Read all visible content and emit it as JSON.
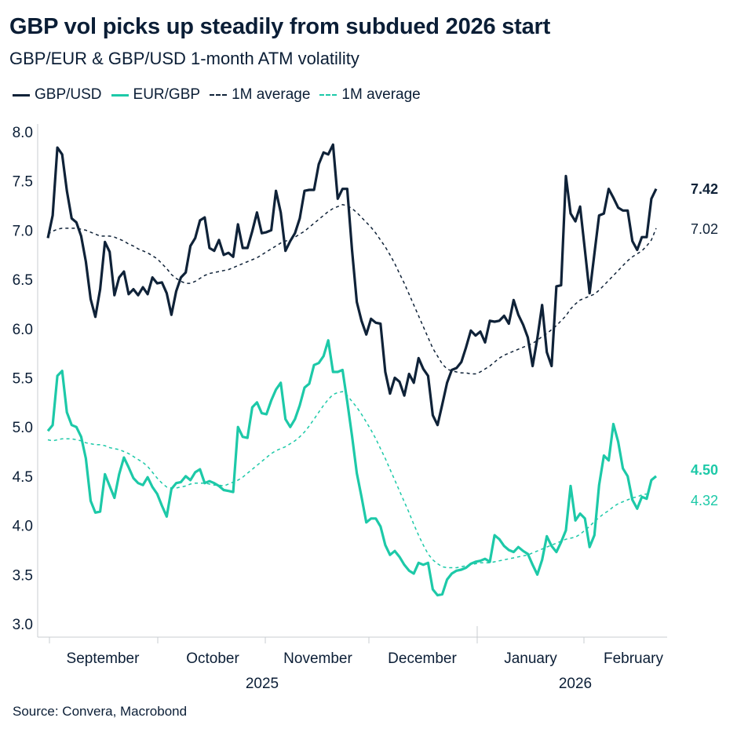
{
  "header": {
    "title": "GBP vol picks up steadily from subdued 2026 start",
    "subtitle": "GBP/EUR & GBP/USD 1-month ATM volatility"
  },
  "legend": [
    {
      "label": "GBP/USD",
      "style": "solid",
      "color": "#0f2238"
    },
    {
      "label": "EUR/GBP",
      "style": "solid",
      "color": "#1dc9a8"
    },
    {
      "label": "1M average",
      "style": "dashed",
      "color": "#0f2238"
    },
    {
      "label": "1M average",
      "style": "dashed",
      "color": "#1dc9a8"
    }
  ],
  "footer": {
    "source": "Source: Convera, Macrobond"
  },
  "chart_data": {
    "type": "line",
    "ylim": [
      3.0,
      8.0
    ],
    "yticks": [
      "8.0",
      "7.5",
      "7.0",
      "6.5",
      "6.0",
      "5.5",
      "5.0",
      "4.5",
      "4.0",
      "3.5",
      "3.0"
    ],
    "grid": false,
    "legend_position": "top-left",
    "x_month_labels": [
      "September",
      "October",
      "November",
      "December",
      "January",
      "February"
    ],
    "x_year_labels": [
      "2025",
      "2026"
    ],
    "x_start_index": 0,
    "x_end_index": 134,
    "series": [
      {
        "name": "GBP/USD",
        "color": "#0f2238",
        "style": "solid",
        "end_label": "7.42",
        "values": [
          6.92,
          7.15,
          7.84,
          7.77,
          7.4,
          7.12,
          7.08,
          6.94,
          6.68,
          6.3,
          6.12,
          6.4,
          6.88,
          6.78,
          6.34,
          6.52,
          6.58,
          6.35,
          6.4,
          6.34,
          6.42,
          6.35,
          6.52,
          6.46,
          6.47,
          6.36,
          6.14,
          6.38,
          6.52,
          6.57,
          6.84,
          6.92,
          7.1,
          7.13,
          6.82,
          6.79,
          6.9,
          6.75,
          6.77,
          6.73,
          7.06,
          6.82,
          6.82,
          6.99,
          7.18,
          6.97,
          6.98,
          7.0,
          7.4,
          7.18,
          6.79,
          6.89,
          6.97,
          7.12,
          7.4,
          7.41,
          7.41,
          7.67,
          7.79,
          7.77,
          7.87,
          7.32,
          7.42,
          7.42,
          6.8,
          6.27,
          6.08,
          5.94,
          6.1,
          6.06,
          6.05,
          5.56,
          5.34,
          5.5,
          5.46,
          5.32,
          5.54,
          5.45,
          5.7,
          5.59,
          5.52,
          5.12,
          5.02,
          5.23,
          5.45,
          5.58,
          5.6,
          5.66,
          5.81,
          5.98,
          5.93,
          5.97,
          5.86,
          6.08,
          6.07,
          6.08,
          6.13,
          6.05,
          6.29,
          6.14,
          6.04,
          5.91,
          5.62,
          5.9,
          6.24,
          5.76,
          5.62,
          6.43,
          6.44,
          7.55,
          7.17,
          7.09,
          7.24,
          6.8,
          6.36,
          6.76,
          7.15,
          7.17,
          7.42,
          7.33,
          7.23,
          7.2,
          7.2,
          6.89,
          6.8,
          6.93,
          6.93,
          7.32,
          7.42
        ],
        "average": [
          6.96,
          6.99,
          7.01,
          7.02,
          7.02,
          7.02,
          7.02,
          7.01,
          7.0,
          6.98,
          6.96,
          6.94,
          6.94,
          6.94,
          6.93,
          6.91,
          6.89,
          6.86,
          6.84,
          6.81,
          6.79,
          6.77,
          6.74,
          6.71,
          6.66,
          6.61,
          6.55,
          6.51,
          6.48,
          6.46,
          6.46,
          6.48,
          6.51,
          6.54,
          6.56,
          6.57,
          6.58,
          6.59,
          6.6,
          6.62,
          6.64,
          6.66,
          6.68,
          6.7,
          6.72,
          6.75,
          6.78,
          6.81,
          6.84,
          6.87,
          6.89,
          6.9,
          6.93,
          6.96,
          6.99,
          7.03,
          7.07,
          7.11,
          7.15,
          7.19,
          7.22,
          7.24,
          7.26,
          7.25,
          7.22,
          7.18,
          7.13,
          7.08,
          7.03,
          6.97,
          6.9,
          6.83,
          6.75,
          6.66,
          6.56,
          6.46,
          6.35,
          6.24,
          6.13,
          6.02,
          5.91,
          5.8,
          5.72,
          5.64,
          5.59,
          5.57,
          5.56,
          5.55,
          5.55,
          5.54,
          5.54,
          5.56,
          5.59,
          5.62,
          5.66,
          5.7,
          5.73,
          5.75,
          5.77,
          5.79,
          5.81,
          5.83,
          5.85,
          5.88,
          5.92,
          5.95,
          5.99,
          6.03,
          6.08,
          6.13,
          6.2,
          6.25,
          6.29,
          6.31,
          6.33,
          6.35,
          6.39,
          6.44,
          6.49,
          6.54,
          6.59,
          6.64,
          6.69,
          6.73,
          6.76,
          6.79,
          6.84,
          6.9,
          7.02
        ]
      },
      {
        "name": "EUR/GBP",
        "color": "#1dc9a8",
        "style": "solid",
        "end_label": "4.50",
        "values": [
          4.96,
          5.02,
          5.52,
          5.57,
          5.15,
          5.02,
          5.0,
          4.9,
          4.68,
          4.25,
          4.13,
          4.14,
          4.52,
          4.4,
          4.28,
          4.52,
          4.69,
          4.59,
          4.48,
          4.43,
          4.41,
          4.49,
          4.39,
          4.32,
          4.2,
          4.09,
          4.37,
          4.43,
          4.44,
          4.5,
          4.46,
          4.54,
          4.57,
          4.43,
          4.45,
          4.43,
          4.4,
          4.36,
          4.35,
          4.34,
          5.0,
          4.9,
          4.89,
          5.2,
          5.25,
          5.14,
          5.13,
          5.27,
          5.38,
          5.45,
          5.08,
          5.0,
          5.08,
          5.22,
          5.4,
          5.44,
          5.63,
          5.65,
          5.72,
          5.88,
          5.56,
          5.56,
          5.58,
          5.26,
          4.91,
          4.53,
          4.29,
          4.03,
          4.07,
          4.07,
          3.99,
          3.8,
          3.7,
          3.74,
          3.68,
          3.6,
          3.54,
          3.51,
          3.62,
          3.6,
          3.62,
          3.35,
          3.29,
          3.3,
          3.45,
          3.51,
          3.54,
          3.55,
          3.57,
          3.61,
          3.63,
          3.64,
          3.66,
          3.63,
          3.9,
          3.86,
          3.79,
          3.75,
          3.73,
          3.78,
          3.74,
          3.71,
          3.6,
          3.5,
          3.65,
          3.89,
          3.79,
          3.73,
          3.83,
          3.95,
          4.4,
          4.05,
          4.12,
          4.07,
          3.78,
          3.9,
          4.41,
          4.71,
          4.66,
          5.03,
          4.85,
          4.58,
          4.5,
          4.26,
          4.17,
          4.29,
          4.27,
          4.46,
          4.5
        ],
        "average": [
          4.87,
          4.86,
          4.87,
          4.88,
          4.88,
          4.88,
          4.87,
          4.86,
          4.84,
          4.83,
          4.82,
          4.82,
          4.81,
          4.79,
          4.78,
          4.77,
          4.75,
          4.73,
          4.7,
          4.67,
          4.64,
          4.6,
          4.54,
          4.48,
          4.43,
          4.39,
          4.38,
          4.38,
          4.39,
          4.4,
          4.42,
          4.43,
          4.43,
          4.43,
          4.42,
          4.41,
          4.41,
          4.4,
          4.42,
          4.44,
          4.46,
          4.49,
          4.53,
          4.57,
          4.61,
          4.65,
          4.69,
          4.73,
          4.76,
          4.78,
          4.8,
          4.83,
          4.86,
          4.9,
          4.95,
          5.01,
          5.08,
          5.15,
          5.22,
          5.28,
          5.33,
          5.35,
          5.36,
          5.32,
          5.26,
          5.2,
          5.13,
          5.05,
          4.97,
          4.88,
          4.78,
          4.68,
          4.57,
          4.46,
          4.35,
          4.24,
          4.13,
          4.01,
          3.9,
          3.8,
          3.71,
          3.65,
          3.61,
          3.58,
          3.57,
          3.57,
          3.57,
          3.58,
          3.59,
          3.6,
          3.61,
          3.62,
          3.62,
          3.62,
          3.63,
          3.64,
          3.65,
          3.66,
          3.67,
          3.68,
          3.69,
          3.7,
          3.72,
          3.74,
          3.76,
          3.78,
          3.8,
          3.82,
          3.84,
          3.86,
          3.87,
          3.88,
          3.91,
          3.95,
          3.99,
          4.04,
          4.08,
          4.12,
          4.15,
          4.19,
          4.22,
          4.24,
          4.26,
          4.28,
          4.29,
          4.31,
          4.32
        ]
      },
      {
        "name": "1M average",
        "color": "#0f2238",
        "style": "dashed",
        "end_label": "7.02"
      },
      {
        "name": "1M average",
        "color": "#1dc9a8",
        "style": "dashed",
        "end_label": "4.32"
      }
    ]
  }
}
